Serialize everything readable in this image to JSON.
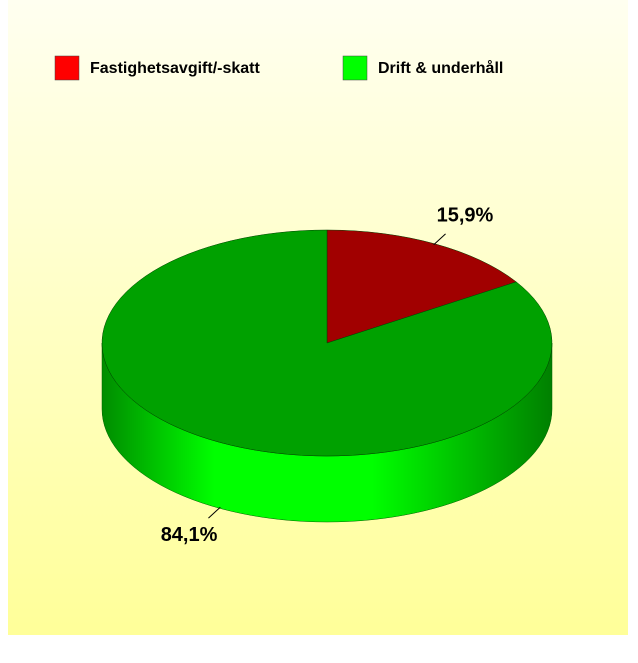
{
  "chart_data": {
    "type": "pie",
    "categories": [
      "Fastighetsavgift/-skatt",
      "Drift & underhåll"
    ],
    "values": [
      15.9,
      84.1
    ],
    "value_labels": [
      "15,9%",
      "84,1%"
    ],
    "colors": [
      "#ff0000",
      "#00ff00"
    ],
    "legend": "top"
  }
}
